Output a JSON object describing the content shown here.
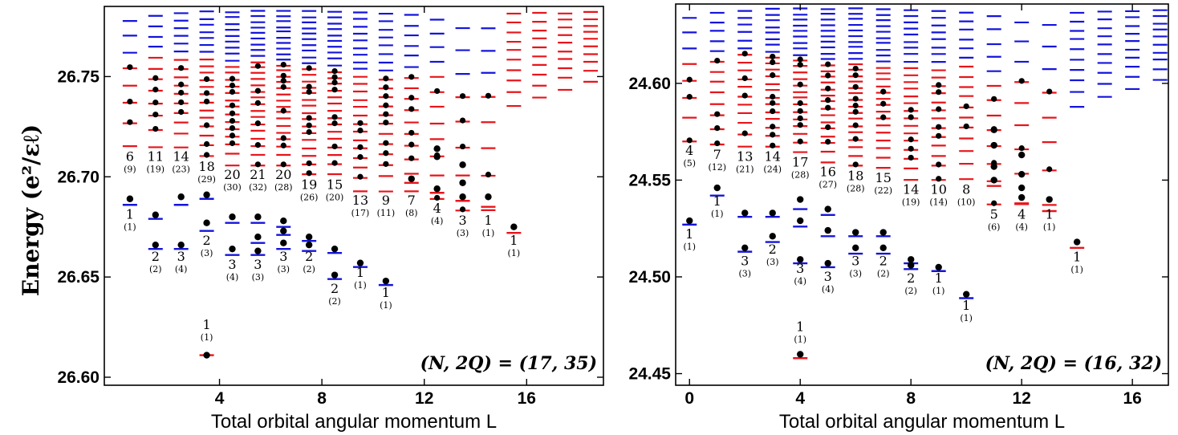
{
  "figure": {
    "ylabel": "Energy (e²/εℓ)",
    "colors": {
      "red": "#e8141a",
      "blue": "#1414dc",
      "dot": "#000000"
    }
  },
  "chart_data": [
    {
      "type": "scatter",
      "panel": "left",
      "annotation": "(N, 2Q) = (17, 35)",
      "xlabel": "Total orbital angular momentum L",
      "xticks": [
        4,
        8,
        12,
        16
      ],
      "yticks": [
        26.6,
        26.65,
        26.7,
        26.75
      ],
      "xlim": [
        -0.5,
        19
      ],
      "ylim": [
        26.596,
        26.785
      ],
      "x_values": [
        0.5,
        1.5,
        2.5,
        3.5,
        4.5,
        5.5,
        6.5,
        7.5,
        8.5,
        9.5,
        10.5,
        11.5,
        12.5,
        13.5,
        14.5,
        15.5,
        16.5,
        17.5,
        18.5
      ],
      "labels": [
        {
          "L": 0.5,
          "y": 26.708,
          "count": "6",
          "multiplicity": "(9)"
        },
        {
          "L": 1.5,
          "y": 26.708,
          "count": "11",
          "multiplicity": "(19)"
        },
        {
          "L": 2.5,
          "y": 26.708,
          "count": "14",
          "multiplicity": "(23)"
        },
        {
          "L": 3.5,
          "y": 26.703,
          "count": "18",
          "multiplicity": "(29)"
        },
        {
          "L": 4.5,
          "y": 26.699,
          "count": "20",
          "multiplicity": "(30)"
        },
        {
          "L": 5.5,
          "y": 26.699,
          "count": "21",
          "multiplicity": "(32)"
        },
        {
          "L": 6.5,
          "y": 26.699,
          "count": "20",
          "multiplicity": "(28)"
        },
        {
          "L": 7.5,
          "y": 26.694,
          "count": "19",
          "multiplicity": "(26)"
        },
        {
          "L": 8.5,
          "y": 26.694,
          "count": "15",
          "multiplicity": "(20)"
        },
        {
          "L": 9.5,
          "y": 26.686,
          "count": "13",
          "multiplicity": "(17)"
        },
        {
          "L": 10.5,
          "y": 26.686,
          "count": "9",
          "multiplicity": "(11)"
        },
        {
          "L": 11.5,
          "y": 26.686,
          "count": "7",
          "multiplicity": "(8)"
        },
        {
          "L": 12.5,
          "y": 26.682,
          "count": "4",
          "multiplicity": "(4)"
        },
        {
          "L": 13.5,
          "y": 26.676,
          "count": "3",
          "multiplicity": "(3)"
        },
        {
          "L": 14.5,
          "y": 26.676,
          "count": "1",
          "multiplicity": "(1)"
        },
        {
          "L": 0.5,
          "y": 26.679,
          "count": "1",
          "multiplicity": "(1)"
        },
        {
          "L": 1.5,
          "y": 26.658,
          "count": "2",
          "multiplicity": "(2)"
        },
        {
          "L": 2.5,
          "y": 26.658,
          "count": "3",
          "multiplicity": "(4)"
        },
        {
          "L": 3.5,
          "y": 26.666,
          "count": "2",
          "multiplicity": "(3)"
        },
        {
          "L": 4.5,
          "y": 26.654,
          "count": "3",
          "multiplicity": "(4)"
        },
        {
          "L": 5.5,
          "y": 26.654,
          "count": "3",
          "multiplicity": "(3)"
        },
        {
          "L": 6.5,
          "y": 26.658,
          "count": "3",
          "multiplicity": "(3)"
        },
        {
          "L": 7.5,
          "y": 26.658,
          "count": "2",
          "multiplicity": "(2)"
        },
        {
          "L": 8.5,
          "y": 26.642,
          "count": "2",
          "multiplicity": "(2)"
        },
        {
          "L": 9.5,
          "y": 26.65,
          "count": "1",
          "multiplicity": "(1)"
        },
        {
          "L": 10.5,
          "y": 26.64,
          "count": "1",
          "multiplicity": "(1)"
        },
        {
          "L": 15.5,
          "y": 26.666,
          "count": "1",
          "multiplicity": "(1)"
        },
        {
          "L": 3.5,
          "y": 26.624,
          "count": "1",
          "multiplicity": "(1)"
        }
      ],
      "low_levels": [
        {
          "L": 0.5,
          "e": 26.686,
          "color": "blue",
          "dots": [
            26.689
          ]
        },
        {
          "L": 1.5,
          "e": 26.679,
          "color": "blue",
          "dots": [
            26.681
          ]
        },
        {
          "L": 1.5,
          "e": 26.664,
          "color": "blue",
          "dots": [
            26.666
          ]
        },
        {
          "L": 2.5,
          "e": 26.686,
          "color": "blue",
          "dots": [
            26.69
          ]
        },
        {
          "L": 2.5,
          "e": 26.664,
          "color": "blue",
          "dots": [
            26.666
          ]
        },
        {
          "L": 3.5,
          "e": 26.689,
          "color": "blue",
          "dots": [
            26.691
          ]
        },
        {
          "L": 3.5,
          "e": 26.673,
          "color": "blue",
          "dots": [
            26.677
          ]
        },
        {
          "L": 4.5,
          "e": 26.677,
          "color": "blue",
          "dots": [
            26.68
          ]
        },
        {
          "L": 4.5,
          "e": 26.661,
          "color": "blue",
          "dots": [
            26.664
          ]
        },
        {
          "L": 5.5,
          "e": 26.677,
          "color": "blue",
          "dots": [
            26.68
          ]
        },
        {
          "L": 5.5,
          "e": 26.667,
          "color": "blue",
          "dots": [
            26.67
          ]
        },
        {
          "L": 5.5,
          "e": 26.661,
          "color": "blue",
          "dots": [
            26.663
          ]
        },
        {
          "L": 6.5,
          "e": 26.675,
          "color": "blue",
          "dots": [
            26.678
          ]
        },
        {
          "L": 6.5,
          "e": 26.671,
          "color": "blue",
          "dots": [
            26.673
          ]
        },
        {
          "L": 6.5,
          "e": 26.664,
          "color": "blue",
          "dots": [
            26.667
          ]
        },
        {
          "L": 7.5,
          "e": 26.668,
          "color": "blue",
          "dots": [
            26.67
          ]
        },
        {
          "L": 7.5,
          "e": 26.663,
          "color": "blue",
          "dots": [
            26.666
          ]
        },
        {
          "L": 8.5,
          "e": 26.662,
          "color": "blue",
          "dots": [
            26.664
          ]
        },
        {
          "L": 8.5,
          "e": 26.649,
          "color": "blue",
          "dots": [
            26.651
          ]
        },
        {
          "L": 9.5,
          "e": 26.655,
          "color": "blue",
          "dots": [
            26.657
          ]
        },
        {
          "L": 10.5,
          "e": 26.646,
          "color": "blue",
          "dots": [
            26.648
          ]
        },
        {
          "L": 11.5,
          "e": 26.697,
          "color": "red",
          "dots": [
            26.699
          ]
        },
        {
          "L": 12.5,
          "e": 26.692,
          "color": "red",
          "dots": [
            26.694,
            26.71,
            26.714
          ]
        },
        {
          "L": 13.5,
          "e": 26.688,
          "color": "red",
          "dots": [
            26.69,
            26.697,
            26.706
          ]
        },
        {
          "L": 14.5,
          "e": 26.685,
          "color": "red",
          "dots": [
            26.69
          ]
        },
        {
          "L": 15.5,
          "e": 26.672,
          "color": "red",
          "dots": [
            26.675
          ]
        },
        {
          "L": 3.5,
          "e": 26.611,
          "color": "red",
          "dots": [
            26.611
          ]
        }
      ]
    },
    {
      "type": "scatter",
      "panel": "right",
      "annotation": "(N, 2Q) = (16, 32)",
      "xlabel": "Total orbital angular momentum L",
      "xticks": [
        0,
        4,
        8,
        12,
        16
      ],
      "yticks": [
        24.45,
        24.5,
        24.55,
        24.6
      ],
      "xlim": [
        -0.5,
        17.3
      ],
      "ylim": [
        24.444,
        24.641
      ],
      "x_values": [
        0,
        1,
        2,
        3,
        4,
        5,
        6,
        7,
        8,
        9,
        10,
        11,
        12,
        13,
        14,
        15,
        16,
        17
      ],
      "labels": [
        {
          "L": 0,
          "y": 24.563,
          "count": "4",
          "multiplicity": "(5)"
        },
        {
          "L": 1,
          "y": 24.561,
          "count": "7",
          "multiplicity": "(12)"
        },
        {
          "L": 2,
          "y": 24.56,
          "count": "13",
          "multiplicity": "(21)"
        },
        {
          "L": 3,
          "y": 24.56,
          "count": "14",
          "multiplicity": "(24)"
        },
        {
          "L": 4,
          "y": 24.557,
          "count": "17",
          "multiplicity": "(28)"
        },
        {
          "L": 5,
          "y": 24.552,
          "count": "16",
          "multiplicity": "(27)"
        },
        {
          "L": 6,
          "y": 24.55,
          "count": "18",
          "multiplicity": "(28)"
        },
        {
          "L": 7,
          "y": 24.549,
          "count": "15",
          "multiplicity": "(22)"
        },
        {
          "L": 8,
          "y": 24.543,
          "count": "14",
          "multiplicity": "(19)"
        },
        {
          "L": 9,
          "y": 24.543,
          "count": "10",
          "multiplicity": "(14)"
        },
        {
          "L": 10,
          "y": 24.543,
          "count": "8",
          "multiplicity": "(10)"
        },
        {
          "L": 11,
          "y": 24.53,
          "count": "5",
          "multiplicity": "(6)"
        },
        {
          "L": 12,
          "y": 24.53,
          "count": "4",
          "multiplicity": "(4)"
        },
        {
          "L": 13,
          "y": 24.53,
          "count": "1",
          "multiplicity": "(1)"
        },
        {
          "L": 0,
          "y": 24.52,
          "count": "1",
          "multiplicity": "(1)"
        },
        {
          "L": 1,
          "y": 24.537,
          "count": "1",
          "multiplicity": "(1)"
        },
        {
          "L": 2,
          "y": 24.506,
          "count": "3",
          "multiplicity": "(3)"
        },
        {
          "L": 3,
          "y": 24.512,
          "count": "2",
          "multiplicity": "(3)"
        },
        {
          "L": 4,
          "y": 24.502,
          "count": "3",
          "multiplicity": "(4)"
        },
        {
          "L": 5,
          "y": 24.498,
          "count": "3",
          "multiplicity": "(4)"
        },
        {
          "L": 6,
          "y": 24.506,
          "count": "3",
          "multiplicity": "(3)"
        },
        {
          "L": 7,
          "y": 24.506,
          "count": "2",
          "multiplicity": "(2)"
        },
        {
          "L": 8,
          "y": 24.497,
          "count": "2",
          "multiplicity": "(2)"
        },
        {
          "L": 9,
          "y": 24.497,
          "count": "1",
          "multiplicity": "(1)"
        },
        {
          "L": 10,
          "y": 24.483,
          "count": "1",
          "multiplicity": "(1)"
        },
        {
          "L": 14,
          "y": 24.508,
          "count": "1",
          "multiplicity": "(1)"
        },
        {
          "L": 4,
          "y": 24.472,
          "count": "1",
          "multiplicity": "(1)"
        }
      ],
      "low_levels": [
        {
          "L": 0,
          "e": 24.527,
          "color": "blue",
          "dots": [
            24.529
          ]
        },
        {
          "L": 1,
          "e": 24.542,
          "color": "blue",
          "dots": [
            24.546
          ]
        },
        {
          "L": 2,
          "e": 24.531,
          "color": "blue",
          "dots": [
            24.533
          ]
        },
        {
          "L": 2,
          "e": 24.513,
          "color": "blue",
          "dots": [
            24.515
          ]
        },
        {
          "L": 3,
          "e": 24.531,
          "color": "blue",
          "dots": [
            24.533
          ]
        },
        {
          "L": 3,
          "e": 24.518,
          "color": "blue",
          "dots": [
            24.521
          ]
        },
        {
          "L": 4,
          "e": 24.535,
          "color": "blue",
          "dots": [
            24.54
          ]
        },
        {
          "L": 4,
          "e": 24.526,
          "color": "blue",
          "dots": [
            24.529
          ]
        },
        {
          "L": 4,
          "e": 24.507,
          "color": "blue",
          "dots": [
            24.509
          ]
        },
        {
          "L": 5,
          "e": 24.532,
          "color": "blue",
          "dots": [
            24.535
          ]
        },
        {
          "L": 5,
          "e": 24.521,
          "color": "blue",
          "dots": [
            24.524
          ]
        },
        {
          "L": 5,
          "e": 24.505,
          "color": "blue",
          "dots": [
            24.507
          ]
        },
        {
          "L": 6,
          "e": 24.521,
          "color": "blue",
          "dots": [
            24.523
          ]
        },
        {
          "L": 6,
          "e": 24.512,
          "color": "blue",
          "dots": [
            24.515
          ]
        },
        {
          "L": 7,
          "e": 24.521,
          "color": "blue",
          "dots": [
            24.523
          ]
        },
        {
          "L": 7,
          "e": 24.512,
          "color": "blue",
          "dots": [
            24.515
          ]
        },
        {
          "L": 8,
          "e": 24.507,
          "color": "blue",
          "dots": [
            24.509
          ]
        },
        {
          "L": 8,
          "e": 24.504,
          "color": "blue",
          "dots": [
            24.506
          ]
        },
        {
          "L": 9,
          "e": 24.503,
          "color": "blue",
          "dots": [
            24.505
          ]
        },
        {
          "L": 10,
          "e": 24.489,
          "color": "blue",
          "dots": [
            24.491
          ]
        },
        {
          "L": 11,
          "e": 24.547,
          "color": "red",
          "dots": [
            24.55,
            24.557,
            24.568,
            24.576
          ]
        },
        {
          "L": 12,
          "e": 24.538,
          "color": "red",
          "dots": [
            24.541,
            24.546,
            24.553,
            24.563
          ]
        },
        {
          "L": 13,
          "e": 24.534,
          "color": "red",
          "dots": [
            24.54
          ]
        },
        {
          "L": 14,
          "e": 24.515,
          "color": "red",
          "dots": [
            24.518
          ]
        },
        {
          "L": 4,
          "e": 24.458,
          "color": "red",
          "dots": [
            24.46
          ]
        }
      ]
    }
  ]
}
